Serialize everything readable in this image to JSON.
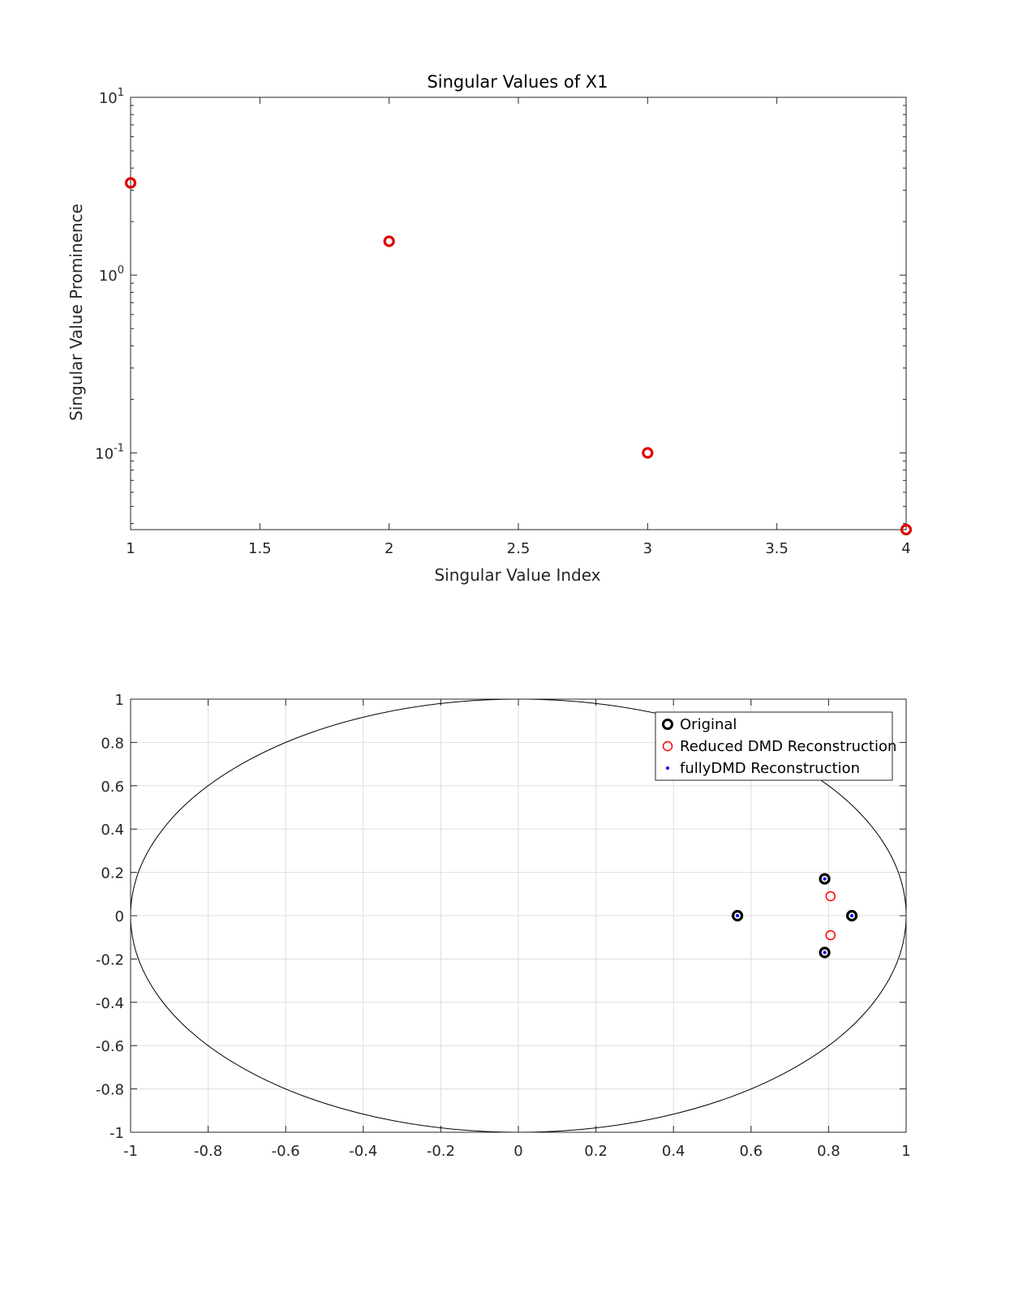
{
  "chart_data": [
    {
      "type": "scatter",
      "title": "Singular Values of X1",
      "xlabel": "Singular Value Index",
      "ylabel": "Singular Value Prominence",
      "xlim": [
        1,
        4
      ],
      "ylim": [
        0.037,
        10
      ],
      "yscale": "log",
      "grid": false,
      "xticks": [
        "1",
        "1.5",
        "2",
        "2.5",
        "3",
        "3.5",
        "4"
      ],
      "xtick_values": [
        1,
        1.5,
        2,
        2.5,
        3,
        3.5,
        4
      ],
      "yticks": [
        {
          "value": 10,
          "base": "10",
          "exp": "1"
        },
        {
          "value": 1,
          "base": "10",
          "exp": "0"
        },
        {
          "value": 0.1,
          "base": "10",
          "exp": "-1"
        }
      ],
      "series": [
        {
          "marker": "o",
          "color": "#e00000",
          "x": [
            1,
            2,
            3,
            4
          ],
          "y": [
            3.3,
            1.55,
            0.1,
            0.037
          ]
        }
      ]
    },
    {
      "type": "scatter",
      "title": "",
      "xlabel": "",
      "ylabel": "",
      "xlim": [
        -1,
        1
      ],
      "ylim": [
        -1,
        1
      ],
      "grid": true,
      "xticks": [
        "-1",
        "-0.8",
        "-0.6",
        "-0.4",
        "-0.2",
        "0",
        "0.2",
        "0.4",
        "0.6",
        "0.8",
        "1"
      ],
      "yticks": [
        "-1",
        "-0.8",
        "-0.6",
        "-0.4",
        "-0.2",
        "0",
        "0.2",
        "0.4",
        "0.6",
        "0.8",
        "1"
      ],
      "tick_values": [
        -1,
        -0.8,
        -0.6,
        -0.4,
        -0.2,
        0,
        0.2,
        0.4,
        0.6,
        0.8,
        1
      ],
      "unit_circle": true,
      "legend_position": "top-right",
      "series": [
        {
          "name": "Original",
          "marker": "o",
          "color": "#000000",
          "x": [
            0.565,
            0.79,
            0.79,
            0.86
          ],
          "y": [
            0,
            0.17,
            -0.17,
            0
          ]
        },
        {
          "name": "Reduced DMD Reconstruction",
          "marker": "o",
          "color": "#ff0000",
          "x": [
            0.805,
            0.805
          ],
          "y": [
            0.09,
            -0.09
          ]
        },
        {
          "name": "fullyDMD Reconstruction",
          "marker": ".",
          "color": "#0000ff",
          "x": [
            0.565,
            0.79,
            0.79,
            0.86
          ],
          "y": [
            0,
            0.17,
            -0.17,
            0
          ]
        }
      ]
    }
  ]
}
